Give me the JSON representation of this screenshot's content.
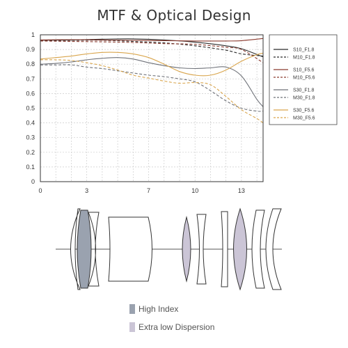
{
  "title": "MTF & Optical Design",
  "colors": {
    "dark": "#2b2b2b",
    "brown": "#8b3a2e",
    "grey": "#6e7178",
    "gold": "#d9a54c",
    "high_index": "#9aa2af",
    "extra_low_dispersion": "#cbc5d6",
    "grid": "#cccccc"
  },
  "chart_data": {
    "type": "line",
    "title": "",
    "xlabel": "",
    "ylabel": "",
    "xlim": [
      0,
      14.4
    ],
    "ylim": [
      0,
      1
    ],
    "grid": true,
    "legend_position": "right",
    "x_ticks": [
      0,
      3,
      7,
      10,
      13
    ],
    "y_ticks": [
      0,
      0.1,
      0.2,
      0.3,
      0.4,
      0.5,
      0.6,
      0.7,
      0.8,
      0.9,
      1
    ],
    "series": [
      {
        "name": "S10_F1.8",
        "color": "dark",
        "dash": false,
        "x": [
          0,
          2,
          4,
          6,
          8,
          10,
          12,
          13,
          14.4
        ],
        "y": [
          0.963,
          0.965,
          0.97,
          0.972,
          0.965,
          0.95,
          0.925,
          0.905,
          0.85
        ]
      },
      {
        "name": "M10_F1.8",
        "color": "dark",
        "dash": true,
        "x": [
          0,
          2,
          4,
          6,
          8,
          10,
          12,
          13,
          14.4
        ],
        "y": [
          0.96,
          0.962,
          0.963,
          0.955,
          0.945,
          0.925,
          0.895,
          0.87,
          0.855
        ]
      },
      {
        "name": "S10_F5.6",
        "color": "brown",
        "dash": false,
        "x": [
          0,
          2,
          4,
          6,
          8,
          10,
          12,
          13,
          14.4
        ],
        "y": [
          0.965,
          0.967,
          0.965,
          0.962,
          0.96,
          0.958,
          0.958,
          0.96,
          0.975
        ]
      },
      {
        "name": "M10_F5.6",
        "color": "brown",
        "dash": true,
        "x": [
          0,
          2,
          4,
          6,
          8,
          10,
          12,
          13,
          14.4
        ],
        "y": [
          0.958,
          0.955,
          0.952,
          0.948,
          0.94,
          0.935,
          0.915,
          0.9,
          0.81
        ]
      },
      {
        "name": "S30_F1.8",
        "color": "grey",
        "dash": false,
        "x": [
          0,
          1,
          2,
          3,
          4,
          5,
          6,
          7,
          8,
          9,
          10,
          11,
          12,
          13,
          14,
          14.4
        ],
        "y": [
          0.8,
          0.805,
          0.815,
          0.83,
          0.84,
          0.845,
          0.835,
          0.81,
          0.79,
          0.775,
          0.77,
          0.775,
          0.78,
          0.72,
          0.56,
          0.51
        ]
      },
      {
        "name": "M30_F1.8",
        "color": "grey",
        "dash": true,
        "x": [
          0,
          1,
          2,
          3,
          4,
          5,
          6,
          7,
          8,
          9,
          10,
          11,
          12,
          13,
          14,
          14.4
        ],
        "y": [
          0.795,
          0.795,
          0.795,
          0.78,
          0.77,
          0.755,
          0.74,
          0.725,
          0.715,
          0.7,
          0.68,
          0.62,
          0.55,
          0.5,
          0.48,
          0.48
        ]
      },
      {
        "name": "S30_F5.6",
        "color": "gold",
        "dash": false,
        "x": [
          0,
          1,
          2,
          3,
          4,
          5,
          6,
          7,
          8,
          9,
          10,
          11,
          12,
          13,
          14,
          14.4
        ],
        "y": [
          0.835,
          0.845,
          0.855,
          0.87,
          0.88,
          0.88,
          0.87,
          0.845,
          0.8,
          0.75,
          0.725,
          0.725,
          0.76,
          0.82,
          0.865,
          0.875
        ]
      },
      {
        "name": "M30_F5.6",
        "color": "gold",
        "dash": true,
        "x": [
          0,
          1,
          2,
          3,
          4,
          5,
          6,
          7,
          8,
          9,
          10,
          11,
          12,
          13,
          14,
          14.4
        ],
        "y": [
          0.83,
          0.83,
          0.825,
          0.81,
          0.79,
          0.76,
          0.725,
          0.705,
          0.685,
          0.67,
          0.675,
          0.66,
          0.58,
          0.49,
          0.43,
          0.4
        ]
      }
    ]
  },
  "optical_design": {
    "elements": [
      {
        "glass": "normal"
      },
      {
        "glass": "high_index"
      },
      {
        "glass": "normal"
      },
      {
        "glass": "normal"
      },
      {
        "glass": "extra_low_dispersion"
      },
      {
        "glass": "normal"
      },
      {
        "glass": "normal"
      },
      {
        "glass": "extra_low_dispersion"
      },
      {
        "glass": "normal"
      },
      {
        "glass": "normal"
      }
    ],
    "legend": [
      {
        "label": "High Index",
        "color": "high_index"
      },
      {
        "label": "Extra low Dispersion",
        "color": "extra_low_dispersion"
      }
    ]
  }
}
